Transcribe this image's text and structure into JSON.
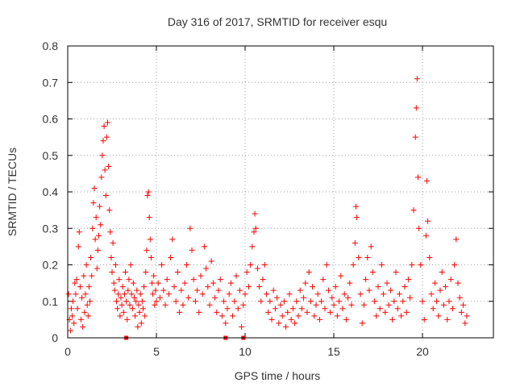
{
  "chart_data": {
    "type": "scatter",
    "title": "Day 316 of 2017, SRMTID for receiver esqu",
    "xlabel": "GPS time / hours",
    "ylabel": "SRMTID / TECUs",
    "xlim": [
      0,
      24
    ],
    "ylim": [
      0,
      0.8
    ],
    "xticks": [
      0,
      5,
      10,
      15,
      20
    ],
    "xtick_labels": [
      "0",
      "5",
      "10",
      "15",
      "20"
    ],
    "yticks": [
      0,
      0.1,
      0.2,
      0.3,
      0.4,
      0.5,
      0.6,
      0.7,
      0.8
    ],
    "ytick_labels": [
      "0",
      "0.1",
      "0.2",
      "0.3",
      "0.4",
      "0.5",
      "0.6",
      "0.7",
      "0.8"
    ],
    "grid": true,
    "marker": "plus",
    "color": "#ff0000",
    "x_axis_markers": [
      3.3,
      8.9,
      9.9
    ],
    "series": [
      {
        "name": "SRMTID",
        "points": [
          [
            0.05,
            0.12
          ],
          [
            0.1,
            0.05
          ],
          [
            0.15,
            0.02
          ],
          [
            0.2,
            0.08
          ],
          [
            0.25,
            0.06
          ],
          [
            0.3,
            0.1
          ],
          [
            0.35,
            0.04
          ],
          [
            0.4,
            0.15
          ],
          [
            0.45,
            0.12
          ],
          [
            0.5,
            0.16
          ],
          [
            0.55,
            0.08
          ],
          [
            0.6,
            0.25
          ],
          [
            0.65,
            0.29
          ],
          [
            0.7,
            0.14
          ],
          [
            0.75,
            0.05
          ],
          [
            0.8,
            0.11
          ],
          [
            0.85,
            0.03
          ],
          [
            0.9,
            0.17
          ],
          [
            0.95,
            0.07
          ],
          [
            1.0,
            0.12
          ],
          [
            1.05,
            0.2
          ],
          [
            1.1,
            0.09
          ],
          [
            1.15,
            0.06
          ],
          [
            1.2,
            0.14
          ],
          [
            1.25,
            0.1
          ],
          [
            1.3,
            0.22
          ],
          [
            1.35,
            0.17
          ],
          [
            1.4,
            0.3
          ],
          [
            1.45,
            0.37
          ],
          [
            1.5,
            0.41
          ],
          [
            1.55,
            0.27
          ],
          [
            1.6,
            0.33
          ],
          [
            1.65,
            0.19
          ],
          [
            1.7,
            0.24
          ],
          [
            1.75,
            0.28
          ],
          [
            1.8,
            0.36
          ],
          [
            1.85,
            0.31
          ],
          [
            1.9,
            0.44
          ],
          [
            1.95,
            0.5
          ],
          [
            2.0,
            0.54
          ],
          [
            2.05,
            0.58
          ],
          [
            2.1,
            0.46
          ],
          [
            2.15,
            0.39
          ],
          [
            2.2,
            0.55
          ],
          [
            2.25,
            0.59
          ],
          [
            2.3,
            0.47
          ],
          [
            2.35,
            0.35
          ],
          [
            2.4,
            0.29
          ],
          [
            2.45,
            0.22
          ],
          [
            2.5,
            0.18
          ],
          [
            2.55,
            0.26
          ],
          [
            2.6,
            0.15
          ],
          [
            2.65,
            0.13
          ],
          [
            2.7,
            0.2
          ],
          [
            2.75,
            0.1
          ],
          [
            2.8,
            0.08
          ],
          [
            2.85,
            0.12
          ],
          [
            2.9,
            0.16
          ],
          [
            2.95,
            0.06
          ],
          [
            3.0,
            0.11
          ],
          [
            3.05,
            0.09
          ],
          [
            3.1,
            0.14
          ],
          [
            3.15,
            0.07
          ],
          [
            3.2,
            0.12
          ],
          [
            3.25,
            0.18
          ],
          [
            3.3,
            0.1
          ],
          [
            3.35,
            0.05
          ],
          [
            3.4,
            0.13
          ],
          [
            3.45,
            0.16
          ],
          [
            3.5,
            0.09
          ],
          [
            3.55,
            0.2
          ],
          [
            3.6,
            0.12
          ],
          [
            3.65,
            0.08
          ],
          [
            3.7,
            0.15
          ],
          [
            3.75,
            0.11
          ],
          [
            3.8,
            0.06
          ],
          [
            3.85,
            0.1
          ],
          [
            3.9,
            0.13
          ],
          [
            3.95,
            0.03
          ],
          [
            4.0,
            0.09
          ],
          [
            4.05,
            0.07
          ],
          [
            4.1,
            0.12
          ],
          [
            4.15,
            0.04
          ],
          [
            4.2,
            0.1
          ],
          [
            4.25,
            0.08
          ],
          [
            4.3,
            0.14
          ],
          [
            4.35,
            0.06
          ],
          [
            4.4,
            0.18
          ],
          [
            4.45,
            0.24
          ],
          [
            4.5,
            0.39
          ],
          [
            4.55,
            0.4
          ],
          [
            4.6,
            0.33
          ],
          [
            4.65,
            0.27
          ],
          [
            4.7,
            0.22
          ],
          [
            4.75,
            0.15
          ],
          [
            4.8,
            0.12
          ],
          [
            4.85,
            0.17
          ],
          [
            4.9,
            0.09
          ],
          [
            4.95,
            0.13
          ],
          [
            5.0,
            0.1
          ],
          [
            5.1,
            0.15
          ],
          [
            5.2,
            0.11
          ],
          [
            5.3,
            0.2
          ],
          [
            5.4,
            0.13
          ],
          [
            5.5,
            0.09
          ],
          [
            5.6,
            0.16
          ],
          [
            5.7,
            0.12
          ],
          [
            5.8,
            0.22
          ],
          [
            5.9,
            0.27
          ],
          [
            6.0,
            0.14
          ],
          [
            6.1,
            0.1
          ],
          [
            6.2,
            0.18
          ],
          [
            6.3,
            0.07
          ],
          [
            6.4,
            0.13
          ],
          [
            6.5,
            0.09
          ],
          [
            6.6,
            0.15
          ],
          [
            6.7,
            0.2
          ],
          [
            6.8,
            0.11
          ],
          [
            6.9,
            0.3
          ],
          [
            7.0,
            0.24
          ],
          [
            7.1,
            0.16
          ],
          [
            7.2,
            0.1
          ],
          [
            7.3,
            0.13
          ],
          [
            7.4,
            0.07
          ],
          [
            7.5,
            0.17
          ],
          [
            7.6,
            0.12
          ],
          [
            7.7,
            0.25
          ],
          [
            7.8,
            0.19
          ],
          [
            7.9,
            0.14
          ],
          [
            8.0,
            0.09
          ],
          [
            8.1,
            0.21
          ],
          [
            8.2,
            0.15
          ],
          [
            8.3,
            0.11
          ],
          [
            8.4,
            0.07
          ],
          [
            8.5,
            0.13
          ],
          [
            8.6,
            0.16
          ],
          [
            8.7,
            0.06
          ],
          [
            8.8,
            0.1
          ],
          [
            8.9,
            0.04
          ],
          [
            9.0,
            0.08
          ],
          [
            9.1,
            0.12
          ],
          [
            9.2,
            0.15
          ],
          [
            9.3,
            0.06
          ],
          [
            9.4,
            0.1
          ],
          [
            9.5,
            0.17
          ],
          [
            9.6,
            0.08
          ],
          [
            9.7,
            0.13
          ],
          [
            9.8,
            0.03
          ],
          [
            9.9,
            0.09
          ],
          [
            10.0,
            0.12
          ],
          [
            10.1,
            0.18
          ],
          [
            10.2,
            0.14
          ],
          [
            10.3,
            0.2
          ],
          [
            10.4,
            0.25
          ],
          [
            10.5,
            0.29
          ],
          [
            10.55,
            0.34
          ],
          [
            10.6,
            0.3
          ],
          [
            10.7,
            0.19
          ],
          [
            10.8,
            0.14
          ],
          [
            10.9,
            0.1
          ],
          [
            11.0,
            0.16
          ],
          [
            11.1,
            0.2
          ],
          [
            11.2,
            0.12
          ],
          [
            11.3,
            0.07
          ],
          [
            11.4,
            0.1
          ],
          [
            11.5,
            0.05
          ],
          [
            11.6,
            0.13
          ],
          [
            11.7,
            0.08
          ],
          [
            11.8,
            0.11
          ],
          [
            11.9,
            0.04
          ],
          [
            12.0,
            0.09
          ],
          [
            12.1,
            0.06
          ],
          [
            12.2,
            0.1
          ],
          [
            12.3,
            0.03
          ],
          [
            12.4,
            0.07
          ],
          [
            12.5,
            0.12
          ],
          [
            12.6,
            0.05
          ],
          [
            12.7,
            0.08
          ],
          [
            12.8,
            0.04
          ],
          [
            12.9,
            0.1
          ],
          [
            13.0,
            0.06
          ],
          [
            13.1,
            0.13
          ],
          [
            13.2,
            0.08
          ],
          [
            13.3,
            0.11
          ],
          [
            13.4,
            0.15
          ],
          [
            13.5,
            0.07
          ],
          [
            13.6,
            0.18
          ],
          [
            13.7,
            0.1
          ],
          [
            13.8,
            0.14
          ],
          [
            13.9,
            0.06
          ],
          [
            14.0,
            0.09
          ],
          [
            14.1,
            0.12
          ],
          [
            14.2,
            0.05
          ],
          [
            14.3,
            0.1
          ],
          [
            14.4,
            0.16
          ],
          [
            14.5,
            0.08
          ],
          [
            14.6,
            0.2
          ],
          [
            14.7,
            0.13
          ],
          [
            14.8,
            0.07
          ],
          [
            14.9,
            0.11
          ],
          [
            15.0,
            0.09
          ],
          [
            15.1,
            0.14
          ],
          [
            15.2,
            0.06
          ],
          [
            15.3,
            0.1
          ],
          [
            15.4,
            0.17
          ],
          [
            15.5,
            0.08
          ],
          [
            15.6,
            0.12
          ],
          [
            15.7,
            0.05
          ],
          [
            15.8,
            0.11
          ],
          [
            15.9,
            0.15
          ],
          [
            16.0,
            0.09
          ],
          [
            16.1,
            0.2
          ],
          [
            16.2,
            0.26
          ],
          [
            16.25,
            0.36
          ],
          [
            16.3,
            0.33
          ],
          [
            16.4,
            0.22
          ],
          [
            16.5,
            0.12
          ],
          [
            16.6,
            0.04
          ],
          [
            16.7,
            0.09
          ],
          [
            16.8,
            0.16
          ],
          [
            16.9,
            0.22
          ],
          [
            17.0,
            0.13
          ],
          [
            17.1,
            0.25
          ],
          [
            17.2,
            0.18
          ],
          [
            17.3,
            0.1
          ],
          [
            17.4,
            0.06
          ],
          [
            17.5,
            0.14
          ],
          [
            17.6,
            0.08
          ],
          [
            17.7,
            0.2
          ],
          [
            17.8,
            0.12
          ],
          [
            17.9,
            0.07
          ],
          [
            18.0,
            0.15
          ],
          [
            18.1,
            0.09
          ],
          [
            18.2,
            0.13
          ],
          [
            18.3,
            0.05
          ],
          [
            18.4,
            0.1
          ],
          [
            18.5,
            0.18
          ],
          [
            18.6,
            0.08
          ],
          [
            18.7,
            0.12
          ],
          [
            18.8,
            0.06
          ],
          [
            18.9,
            0.1
          ],
          [
            19.0,
            0.14
          ],
          [
            19.1,
            0.07
          ],
          [
            19.2,
            0.16
          ],
          [
            19.3,
            0.11
          ],
          [
            19.4,
            0.2
          ],
          [
            19.5,
            0.35
          ],
          [
            19.6,
            0.55
          ],
          [
            19.65,
            0.63
          ],
          [
            19.7,
            0.71
          ],
          [
            19.75,
            0.44
          ],
          [
            19.8,
            0.3
          ],
          [
            19.9,
            0.2
          ],
          [
            20.0,
            0.1
          ],
          [
            20.1,
            0.05
          ],
          [
            20.2,
            0.28
          ],
          [
            20.25,
            0.43
          ],
          [
            20.3,
            0.32
          ],
          [
            20.4,
            0.22
          ],
          [
            20.5,
            0.12
          ],
          [
            20.6,
            0.08
          ],
          [
            20.7,
            0.15
          ],
          [
            20.8,
            0.1
          ],
          [
            20.9,
            0.06
          ],
          [
            21.0,
            0.13
          ],
          [
            21.1,
            0.18
          ],
          [
            21.2,
            0.09
          ],
          [
            21.3,
            0.14
          ],
          [
            21.4,
            0.05
          ],
          [
            21.5,
            0.1
          ],
          [
            21.6,
            0.16
          ],
          [
            21.7,
            0.08
          ],
          [
            21.8,
            0.2
          ],
          [
            21.9,
            0.27
          ],
          [
            22.0,
            0.15
          ],
          [
            22.1,
            0.11
          ],
          [
            22.2,
            0.07
          ],
          [
            22.3,
            0.09
          ],
          [
            22.4,
            0.04
          ],
          [
            22.5,
            0.06
          ]
        ]
      }
    ]
  }
}
